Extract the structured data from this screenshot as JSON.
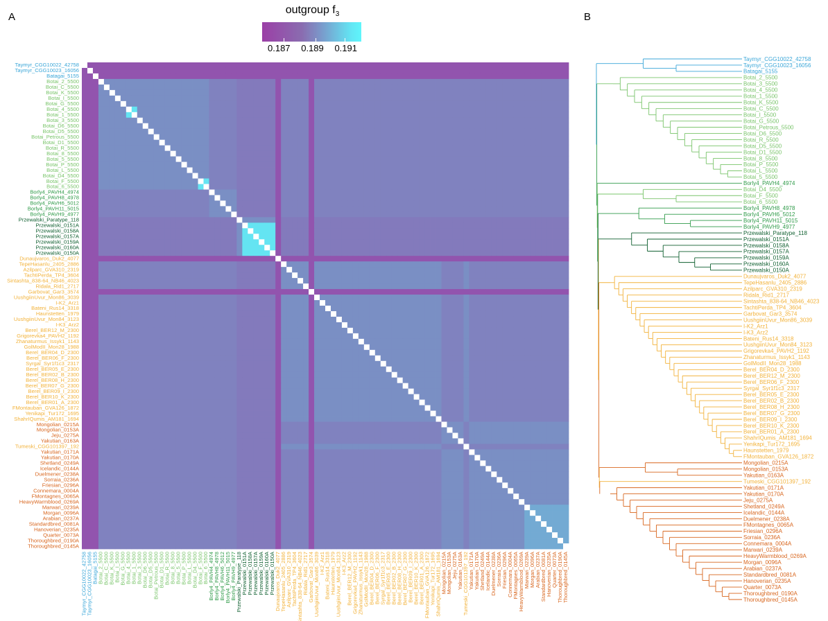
{
  "panel_labels": {
    "a": "A",
    "b": "B"
  },
  "legend": {
    "title": "outgroup f",
    "title_sub": "3",
    "ticks": [
      "0.187",
      "0.189",
      "0.191"
    ]
  },
  "colors": {
    "taymyr": "#3aa6d8",
    "botai": "#79c46a",
    "borly": "#2e9a48",
    "przewalski": "#0d5e2e",
    "ancient_domestic": "#f2b23a",
    "modern": "#d8661e",
    "cell_low": "#9b3fa6",
    "cell_mid": "#7a8fc4",
    "cell_high": "#5ff5fb",
    "grid_line": "#ffffff",
    "tree_root": "#3aa6d8"
  },
  "chart_data": {
    "type": "heatmap",
    "title": "",
    "colorbar_label": "outgroup f3",
    "colorbar_range": [
      0.186,
      0.192
    ],
    "samples": [
      {
        "name": "Taymyr_CGG10022_42758",
        "group": "taymyr"
      },
      {
        "name": "Taymyr_CGG10023_16056",
        "group": "taymyr"
      },
      {
        "name": "Batagai_5155",
        "group": "taymyr"
      },
      {
        "name": "Botai_2_5500",
        "group": "botai"
      },
      {
        "name": "Botai_C_5500",
        "group": "botai"
      },
      {
        "name": "Botai_K_5500",
        "group": "botai"
      },
      {
        "name": "Botai_I_5500",
        "group": "botai"
      },
      {
        "name": "Botai_G_5500",
        "group": "botai"
      },
      {
        "name": "Botai_4_5500",
        "group": "botai"
      },
      {
        "name": "Botai_1_5500",
        "group": "botai"
      },
      {
        "name": "Botai_3_5500",
        "group": "botai"
      },
      {
        "name": "Botai_D6_5500",
        "group": "botai"
      },
      {
        "name": "Botai_D5_5500",
        "group": "botai"
      },
      {
        "name": "Botai_Petrous_5500",
        "group": "botai"
      },
      {
        "name": "Botai_D1_5500",
        "group": "botai"
      },
      {
        "name": "Botai_R_5500",
        "group": "botai"
      },
      {
        "name": "Botai_8_5500",
        "group": "botai"
      },
      {
        "name": "Botai_5_5500",
        "group": "botai"
      },
      {
        "name": "Botai_P_5500",
        "group": "botai"
      },
      {
        "name": "Botai_L_5500",
        "group": "botai"
      },
      {
        "name": "Botai_D4_5500",
        "group": "botai"
      },
      {
        "name": "Botai_F_5500",
        "group": "botai"
      },
      {
        "name": "Botai_6_5500",
        "group": "botai"
      },
      {
        "name": "Borly4_PAVH4_4974",
        "group": "borly"
      },
      {
        "name": "Borly4_PAVH8_4978",
        "group": "borly"
      },
      {
        "name": "Borly4_PAVH6_5012",
        "group": "borly"
      },
      {
        "name": "Borly4_PAVH11_5015",
        "group": "borly"
      },
      {
        "name": "Borly4_PAVH9_4977",
        "group": "borly"
      },
      {
        "name": "Przewalski_Paratype_118",
        "group": "przewalski"
      },
      {
        "name": "Przewalski_0151A",
        "group": "przewalski"
      },
      {
        "name": "Przewalski_0158A",
        "group": "przewalski"
      },
      {
        "name": "Przewalski_0157A",
        "group": "przewalski"
      },
      {
        "name": "Przewalski_0159A",
        "group": "przewalski"
      },
      {
        "name": "Przewalski_0160A",
        "group": "przewalski"
      },
      {
        "name": "Przewalski_0150A",
        "group": "przewalski"
      },
      {
        "name": "Dunaujvaros_Duk2_4077",
        "group": "ancient_domestic"
      },
      {
        "name": "TepeHasanlu_2405_2886",
        "group": "ancient_domestic"
      },
      {
        "name": "Azilparc_GVA310_2319",
        "group": "ancient_domestic"
      },
      {
        "name": "TachtiPerda_TP4_3604",
        "group": "ancient_domestic"
      },
      {
        "name": "Sintashta_838-64_NB46_4023",
        "group": "ancient_domestic"
      },
      {
        "name": "Ridala_Rid1_2717",
        "group": "ancient_domestic"
      },
      {
        "name": "Garbovat_Gar3_3574",
        "group": "ancient_domestic"
      },
      {
        "name": "UushgiinUvur_Mon86_3039",
        "group": "ancient_domestic"
      },
      {
        "name": "I-K2_Arz1",
        "group": "ancient_domestic"
      },
      {
        "name": "Bateni_Rus14_3318",
        "group": "ancient_domestic"
      },
      {
        "name": "Haunstetten_1979",
        "group": "ancient_domestic"
      },
      {
        "name": "UushgiinUvur_Mon84_3123",
        "group": "ancient_domestic"
      },
      {
        "name": "I-K3_Arz2",
        "group": "ancient_domestic"
      },
      {
        "name": "Berel_BER12_M_2300",
        "group": "ancient_domestic"
      },
      {
        "name": "Grigorevka4_PAVH2_1192",
        "group": "ancient_domestic"
      },
      {
        "name": "Zhanaturmus_Issyk1_1143",
        "group": "ancient_domestic"
      },
      {
        "name": "GolModII_Mon28_1988",
        "group": "ancient_domestic"
      },
      {
        "name": "Berel_BER04_D_2300",
        "group": "ancient_domestic"
      },
      {
        "name": "Berel_BER06_F_2300",
        "group": "ancient_domestic"
      },
      {
        "name": "Syrgal_Syr1f1c3_2317",
        "group": "ancient_domestic"
      },
      {
        "name": "Berel_BER05_E_2300",
        "group": "ancient_domestic"
      },
      {
        "name": "Berel_BER02_B_2300",
        "group": "ancient_domestic"
      },
      {
        "name": "Berel_BER08_H_2300",
        "group": "ancient_domestic"
      },
      {
        "name": "Berel_BER07_G_2300",
        "group": "ancient_domestic"
      },
      {
        "name": "Berel_BER09_I_2300",
        "group": "ancient_domestic"
      },
      {
        "name": "Berel_BER10_K_2300",
        "group": "ancient_domestic"
      },
      {
        "name": "Berel_BER01_A_2300",
        "group": "ancient_domestic"
      },
      {
        "name": "FMontauban_GVA126_1872",
        "group": "ancient_domestic"
      },
      {
        "name": "Yenikapi_Tur172_1695",
        "group": "ancient_domestic"
      },
      {
        "name": "ShahrIQumis_AM181_1694",
        "group": "ancient_domestic"
      },
      {
        "name": "Mongolian_0215A",
        "group": "modern"
      },
      {
        "name": "Mongolian_0153A",
        "group": "modern"
      },
      {
        "name": "Jeju_0275A",
        "group": "modern"
      },
      {
        "name": "Yakutian_0163A",
        "group": "modern"
      },
      {
        "name": "Tumeski_CGG101397_192",
        "group": "ancient_domestic"
      },
      {
        "name": "Yakutian_0171A",
        "group": "modern"
      },
      {
        "name": "Yakutian_0170A",
        "group": "modern"
      },
      {
        "name": "Shetland_0249A",
        "group": "modern"
      },
      {
        "name": "Icelandic_0144A",
        "group": "modern"
      },
      {
        "name": "Duelmener_0238A",
        "group": "modern"
      },
      {
        "name": "Sorraia_0236A",
        "group": "modern"
      },
      {
        "name": "Friesian_0296A",
        "group": "modern"
      },
      {
        "name": "Connemara_0004A",
        "group": "modern"
      },
      {
        "name": "FMontagnes_0065A",
        "group": "modern"
      },
      {
        "name": "HeavyWarmblood_0269A",
        "group": "modern"
      },
      {
        "name": "Marwari_0239A",
        "group": "modern"
      },
      {
        "name": "Morgan_0096A",
        "group": "modern"
      },
      {
        "name": "Arabian_0237A",
        "group": "modern"
      },
      {
        "name": "Standardbred_0081A",
        "group": "modern"
      },
      {
        "name": "Hanoverian_0235A",
        "group": "modern"
      },
      {
        "name": "Quarter_0073A",
        "group": "modern"
      },
      {
        "name": "Thoroughbred_0190A",
        "group": "modern"
      },
      {
        "name": "Thoroughbred_0145A",
        "group": "modern"
      }
    ],
    "cell_value_estimates": {
      "background": 0.1885,
      "taymyr_batagai_rows": 0.1868,
      "dunaujvaros_row": 0.1868,
      "garbovat_row": 0.1868,
      "przewalski_block": 0.1915,
      "botai_4_1_pair": 0.1915,
      "botai_F_6_pair": 0.1915,
      "modern_tail_block": 0.1898
    }
  },
  "tree": {
    "type": "dendrogram",
    "title": "",
    "leaves": [
      {
        "name": "Taymyr_CGG10022_42758",
        "group": "taymyr"
      },
      {
        "name": "Taymyr_CGG10023_16056",
        "group": "taymyr"
      },
      {
        "name": "Batagai_5155",
        "group": "taymyr"
      },
      {
        "name": "Botai_2_5500",
        "group": "botai"
      },
      {
        "name": "Botai_3_5500",
        "group": "botai"
      },
      {
        "name": "Botai_4_5500",
        "group": "botai"
      },
      {
        "name": "Botai_1_5500",
        "group": "botai"
      },
      {
        "name": "Botai_K_5500",
        "group": "botai"
      },
      {
        "name": "Botai_C_5500",
        "group": "botai"
      },
      {
        "name": "Botai_I_5500",
        "group": "botai"
      },
      {
        "name": "Botai_G_5500",
        "group": "botai"
      },
      {
        "name": "Botai_Petrous_5500",
        "group": "botai"
      },
      {
        "name": "Botai_D6_5500",
        "group": "botai"
      },
      {
        "name": "Botai_R_5500",
        "group": "botai"
      },
      {
        "name": "Botai_D5_5500",
        "group": "botai"
      },
      {
        "name": "Botai_D1_5500",
        "group": "botai"
      },
      {
        "name": "Botai_8_5500",
        "group": "botai"
      },
      {
        "name": "Botai_P_5500",
        "group": "botai"
      },
      {
        "name": "Botai_L_5500",
        "group": "botai"
      },
      {
        "name": "Botai_5_5500",
        "group": "botai"
      },
      {
        "name": "Borly4_PAVH4_4974",
        "group": "borly"
      },
      {
        "name": "Botai_D4_5500",
        "group": "botai"
      },
      {
        "name": "Botai_F_5500",
        "group": "botai"
      },
      {
        "name": "Botai_6_5500",
        "group": "botai"
      },
      {
        "name": "Borly4_PAVH8_4978",
        "group": "borly"
      },
      {
        "name": "Borly4_PAVH6_5012",
        "group": "borly"
      },
      {
        "name": "Borly4_PAVH11_5015",
        "group": "borly"
      },
      {
        "name": "Borly4_PAVH9_4977",
        "group": "borly"
      },
      {
        "name": "Przewalski_Paratype_118",
        "group": "przewalski"
      },
      {
        "name": "Przewalski_0151A",
        "group": "przewalski"
      },
      {
        "name": "Przewalski_0158A",
        "group": "przewalski"
      },
      {
        "name": "Przewalski_0157A",
        "group": "przewalski"
      },
      {
        "name": "Przewalski_0159A",
        "group": "przewalski"
      },
      {
        "name": "Przewalski_0160A",
        "group": "przewalski"
      },
      {
        "name": "Przewalski_0150A",
        "group": "przewalski"
      },
      {
        "name": "Dunaujvaros_Duk2_4077",
        "group": "ancient_domestic"
      },
      {
        "name": "TepeHasanlu_2405_2886",
        "group": "ancient_domestic"
      },
      {
        "name": "Azilparc_GVA310_2319",
        "group": "ancient_domestic"
      },
      {
        "name": "Ridala_Rid1_2717",
        "group": "ancient_domestic"
      },
      {
        "name": "Sintashta_838-64_NB46_4023",
        "group": "ancient_domestic"
      },
      {
        "name": "TachtiPerda_TP4_3604",
        "group": "ancient_domestic"
      },
      {
        "name": "Garbovat_Gar3_3574",
        "group": "ancient_domestic"
      },
      {
        "name": "UushgiinUvur_Mon86_3039",
        "group": "ancient_domestic"
      },
      {
        "name": "I-K2_Arz1",
        "group": "ancient_domestic"
      },
      {
        "name": "I-K3_Arz2",
        "group": "ancient_domestic"
      },
      {
        "name": "Bateni_Rus14_3318",
        "group": "ancient_domestic"
      },
      {
        "name": "UushgiinUvur_Mon84_3123",
        "group": "ancient_domestic"
      },
      {
        "name": "Grigorevka4_PAVH2_1192",
        "group": "ancient_domestic"
      },
      {
        "name": "Zhanaturmus_Issyk1_1143",
        "group": "ancient_domestic"
      },
      {
        "name": "GolModII_Mon28_1988",
        "group": "ancient_domestic"
      },
      {
        "name": "Berel_BER04_D_2300",
        "group": "ancient_domestic"
      },
      {
        "name": "Berel_BER12_M_2300",
        "group": "ancient_domestic"
      },
      {
        "name": "Berel_BER06_F_2300",
        "group": "ancient_domestic"
      },
      {
        "name": "Syrgal_Syr1f1c3_2317",
        "group": "ancient_domestic"
      },
      {
        "name": "Berel_BER05_E_2300",
        "group": "ancient_domestic"
      },
      {
        "name": "Berel_BER02_B_2300",
        "group": "ancient_domestic"
      },
      {
        "name": "Berel_BER08_H_2300",
        "group": "ancient_domestic"
      },
      {
        "name": "Berel_BER07_G_2300",
        "group": "ancient_domestic"
      },
      {
        "name": "Berel_BER09_I_2300",
        "group": "ancient_domestic"
      },
      {
        "name": "Berel_BER10_K_2300",
        "group": "ancient_domestic"
      },
      {
        "name": "Berel_BER01_A_2300",
        "group": "ancient_domestic"
      },
      {
        "name": "ShahrIQumis_AM181_1694",
        "group": "ancient_domestic"
      },
      {
        "name": "Yenikapi_Tur172_1695",
        "group": "ancient_domestic"
      },
      {
        "name": "Haunstetten_1979",
        "group": "ancient_domestic"
      },
      {
        "name": "FMontauban_GVA126_1872",
        "group": "ancient_domestic"
      },
      {
        "name": "Mongolian_0215A",
        "group": "modern"
      },
      {
        "name": "Mongolian_0153A",
        "group": "modern"
      },
      {
        "name": "Yakutian_0163A",
        "group": "modern"
      },
      {
        "name": "Tumeski_CGG101397_192",
        "group": "ancient_domestic"
      },
      {
        "name": "Yakutian_0171A",
        "group": "modern"
      },
      {
        "name": "Yakutian_0170A",
        "group": "modern"
      },
      {
        "name": "Jeju_0275A",
        "group": "modern"
      },
      {
        "name": "Shetland_0249A",
        "group": "modern"
      },
      {
        "name": "Icelandic_0144A",
        "group": "modern"
      },
      {
        "name": "Duelmener_0238A",
        "group": "modern"
      },
      {
        "name": "FMontagnes_0065A",
        "group": "modern"
      },
      {
        "name": "Friesian_0296A",
        "group": "modern"
      },
      {
        "name": "Sorraia_0236A",
        "group": "modern"
      },
      {
        "name": "Connemara_0004A",
        "group": "modern"
      },
      {
        "name": "Marwari_0239A",
        "group": "modern"
      },
      {
        "name": "HeavyWarmblood_0269A",
        "group": "modern"
      },
      {
        "name": "Morgan_0096A",
        "group": "modern"
      },
      {
        "name": "Arabian_0237A",
        "group": "modern"
      },
      {
        "name": "Standardbred_0081A",
        "group": "modern"
      },
      {
        "name": "Hanoverian_0235A",
        "group": "modern"
      },
      {
        "name": "Quarter_0073A",
        "group": "modern"
      },
      {
        "name": "Thoroughbred_0190A",
        "group": "modern"
      },
      {
        "name": "Thoroughbred_0145A",
        "group": "modern"
      }
    ]
  }
}
